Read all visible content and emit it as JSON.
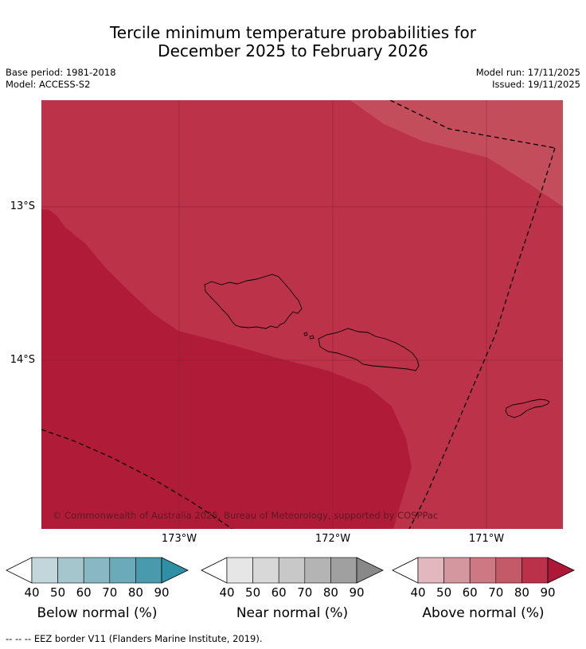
{
  "title": {
    "line1": "Tercile minimum temperature probabilities for",
    "line2": "December 2025 to February 2026"
  },
  "meta_left": {
    "base_period": "Base period: 1981-2018",
    "model": "Model: ACCESS-S2"
  },
  "meta_right": {
    "model_run": "Model run: 17/11/2025",
    "issued": "Issued: 19/11/2025"
  },
  "map": {
    "lat_labels": [
      "13°S",
      "14°S"
    ],
    "lon_labels": [
      "173°W",
      "172°W",
      "171°W"
    ],
    "copyright": "© Commonwealth of Australia 2025, Bureau of Meteorology, supported by COSPPac",
    "colors": {
      "above_70": "#c44d5c",
      "above_80": "#bc3249",
      "above_90": "#b01c38",
      "eez": "#000000",
      "grid": "#7a1a2a"
    }
  },
  "colorbars": [
    {
      "title": "Below normal (%)",
      "ticks": [
        "40",
        "50",
        "60",
        "70",
        "80",
        "90"
      ],
      "colors": [
        "#ffffff",
        "#c2d6dc",
        "#a5c6cc",
        "#89b7c3",
        "#6aaab9",
        "#4a9aae",
        "#2f8fa4"
      ]
    },
    {
      "title": "Near normal (%)",
      "ticks": [
        "40",
        "50",
        "60",
        "70",
        "80",
        "90"
      ],
      "colors": [
        "#ffffff",
        "#e6e6e6",
        "#d8d8d8",
        "#c8c8c8",
        "#b4b4b4",
        "#a0a0a0",
        "#888888"
      ]
    },
    {
      "title": "Above normal (%)",
      "ticks": [
        "40",
        "50",
        "60",
        "70",
        "80",
        "90"
      ],
      "colors": [
        "#ffffff",
        "#e2b8be",
        "#d5979f",
        "#cd7882",
        "#c45a68",
        "#bb3149",
        "#ad1838"
      ]
    }
  ],
  "footnote": "--  --  -- EEZ border V11 (Flanders Marine Institute, 2019)."
}
